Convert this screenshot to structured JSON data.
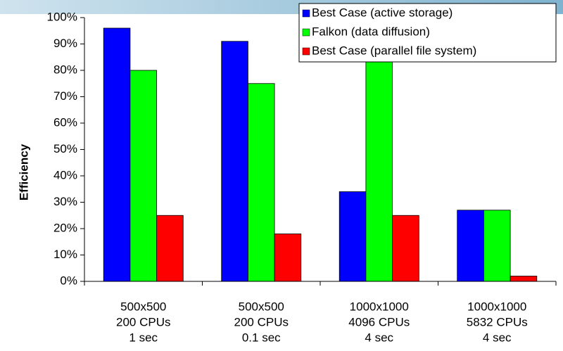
{
  "chart_data": {
    "type": "bar",
    "ylabel": "Efficiency",
    "categories": [
      [
        "500x500",
        "200 CPUs",
        "1 sec"
      ],
      [
        "500x500",
        "200 CPUs",
        "0.1 sec"
      ],
      [
        "1000x1000",
        "4096 CPUs",
        "4 sec"
      ],
      [
        "1000x1000",
        "5832 CPUs",
        "4 sec"
      ]
    ],
    "series": [
      {
        "name": "Best Case (active storage)",
        "color": "#0000ff",
        "values": [
          96,
          91,
          34,
          27
        ]
      },
      {
        "name": "Falkon (data diffusion)",
        "color": "#00ff00",
        "values": [
          80,
          75,
          85,
          27
        ]
      },
      {
        "name": "Best Case (parallel file system)",
        "color": "#ff0000",
        "values": [
          25,
          18,
          25,
          2
        ]
      }
    ],
    "ylim": [
      0,
      100
    ],
    "yticks": [
      {
        "value": 0,
        "label": "0%"
      },
      {
        "value": 10,
        "label": "10%"
      },
      {
        "value": 20,
        "label": "20%"
      },
      {
        "value": 30,
        "label": "30%"
      },
      {
        "value": 40,
        "label": "40%"
      },
      {
        "value": 50,
        "label": "50%"
      },
      {
        "value": 60,
        "label": "60%"
      },
      {
        "value": 70,
        "label": "70%"
      },
      {
        "value": 80,
        "label": "80%"
      },
      {
        "value": 90,
        "label": "90%"
      },
      {
        "value": 100,
        "label": "100%"
      }
    ],
    "legend": "upper right"
  }
}
